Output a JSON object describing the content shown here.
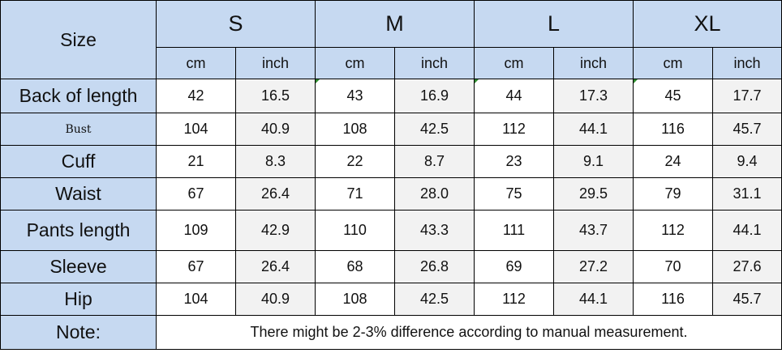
{
  "table": {
    "size_header": "Size",
    "sizes": [
      "S",
      "M",
      "L",
      "XL"
    ],
    "units": [
      "cm",
      "inch"
    ],
    "rows": [
      {
        "label": "Back of length",
        "values": [
          "42",
          "16.5",
          "43",
          "16.9",
          "44",
          "17.3",
          "45",
          "17.7"
        ]
      },
      {
        "label": "Bust",
        "values": [
          "104",
          "40.9",
          "108",
          "42.5",
          "112",
          "44.1",
          "116",
          "45.7"
        ]
      },
      {
        "label": "Cuff",
        "values": [
          "21",
          "8.3",
          "22",
          "8.7",
          "23",
          "9.1",
          "24",
          "9.4"
        ]
      },
      {
        "label": "Waist",
        "values": [
          "67",
          "26.4",
          "71",
          "28.0",
          "75",
          "29.5",
          "79",
          "31.1"
        ]
      },
      {
        "label": "Pants length",
        "values": [
          "109",
          "42.9",
          "110",
          "43.3",
          "111",
          "43.7",
          "112",
          "44.1"
        ]
      },
      {
        "label": "Sleeve",
        "values": [
          "67",
          "26.4",
          "68",
          "26.8",
          "69",
          "27.2",
          "70",
          "27.6"
        ]
      },
      {
        "label": "Hip",
        "values": [
          "104",
          "40.9",
          "108",
          "42.5",
          "112",
          "44.1",
          "116",
          "45.7"
        ]
      }
    ],
    "note_label": "Note:",
    "note_text": "There might be 2-3% difference according to manual measurement."
  }
}
